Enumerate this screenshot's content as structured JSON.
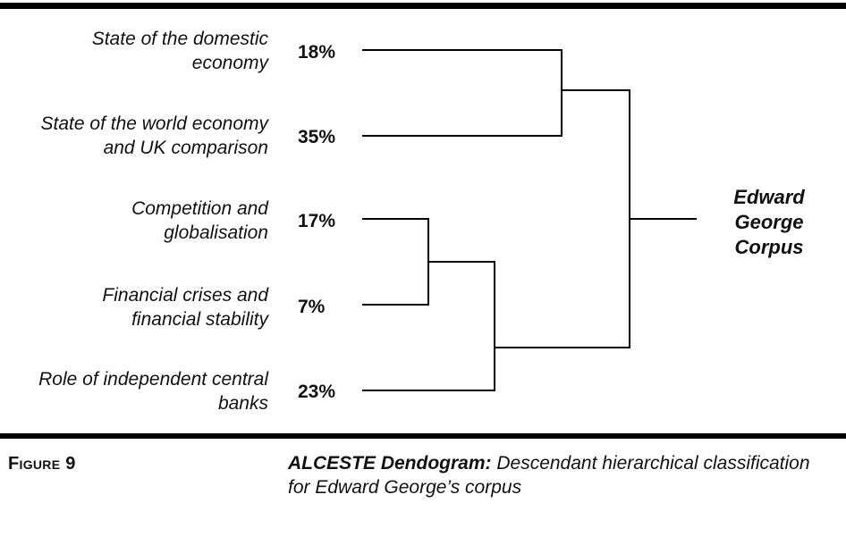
{
  "clusters": [
    {
      "label": "State of the domestic economy",
      "line1": "State of the domestic",
      "line2": "economy",
      "percent": "18%"
    },
    {
      "label": "State of the world economy and UK comparison",
      "line1": "State of the world economy",
      "line2": "and UK comparison",
      "percent": "35%"
    },
    {
      "label": "Competition and globalisation",
      "line1": "Competition and",
      "line2": "globalisation",
      "percent": "17%"
    },
    {
      "label": "Financial crises and financial stability",
      "line1": "Financial crises and",
      "line2": "financial stability",
      "percent": "7%"
    },
    {
      "label": "Role of independent central banks",
      "line1": "Role of independent central",
      "line2": "banks",
      "percent": "23%"
    }
  ],
  "root": {
    "line1": "Edward",
    "line2": "George",
    "line3": "Corpus"
  },
  "figure": {
    "number": "Figure 9",
    "caption_bold": "ALCESTE Dendogram:",
    "caption_rest": " Descendant hierarchical classification for Edward George’s corpus"
  },
  "colors": {
    "lines": "#000000",
    "text": "#111111"
  }
}
